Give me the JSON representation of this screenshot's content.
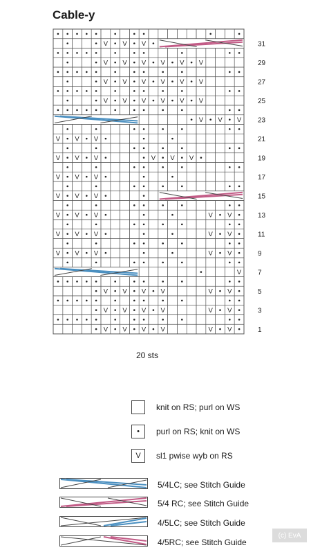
{
  "title": "Cable-y",
  "width_label": "20 sts",
  "row_numbers": [
    "31",
    "29",
    "27",
    "25",
    "23",
    "21",
    "19",
    "17",
    "15",
    "13",
    "11",
    "9",
    "7",
    "5",
    "3",
    "1"
  ],
  "colors": {
    "blue": "#4a8fc0",
    "pink": "#c25b86",
    "grid": "#555555"
  },
  "legend": {
    "knit": "knit on RS; purl on WS",
    "purl": "purl on RS; knit on WS",
    "slip": "sl1 pwise wyb on RS",
    "c54lc": "5/4LC; see Stitch Guide",
    "c54rc": "5/4 RC; see Stitch Guide",
    "c45lc": "4/5LC; see Stitch Guide",
    "c45rc": "4/5RC; see Stitch Guide"
  },
  "copyright": "(c) EvA",
  "chart_data": {
    "type": "table",
    "rows_top_to_bottom": [
      "....._._..______.__.",
      "_.__.v.v.v.___54RC__",
      "....._._..___.____..",
      "_.__.v.v.v.v.v.v____",
      "....._._.._._.____..",
      "_.__.v.v.v.v.v.v____",
      "....._._.._._.____..",
      "_.__.v.v.v.v.v.v____",
      "....._._.._._.____..",
      "45LC_____.v.v.v.v___",
      "_.__.___.._._.____..",
      "v.v.v.___.__._______",
      "_.__.___.._._.____..",
      "v.v.v.___.v.v.v.____",
      "_.__.___.._._.____..",
      "v.v.v.___.__._______",
      "_.__.___.._._.____..",
      "v.v.v.___.__45RC____",
      "_.__.___.._._.____..",
      "v.v.v.___.__.___v.v.v",
      "_.__.___.._._.____..",
      "v.v.v.___.__.___v.v.v",
      "_.__.___.._._.____..",
      "v.v.v.___.__.___v.v.v",
      "_.__.___.._._.____..",
      "54LC______.___v.v.v",
      "....._._.._._.____..",
      "____.v.v.v.v____v.v.v",
      "....._._.._._.____..",
      "____.v.v.v.v____v.v.v",
      "....._._.._._.____..",
      "____.v.v.v.v____v.v.v"
    ],
    "cables": [
      {
        "row": 31,
        "start_col": 12,
        "span": 9,
        "type": "5/4 RC"
      },
      {
        "row": 23,
        "start_col": 1,
        "span": 9,
        "type": "4/5LC"
      },
      {
        "row": 15,
        "start_col": 12,
        "span": 9,
        "type": "4/5RC"
      },
      {
        "row": 7,
        "start_col": 1,
        "span": 9,
        "type": "5/4LC"
      }
    ],
    "columns": 20,
    "rows": 32
  }
}
